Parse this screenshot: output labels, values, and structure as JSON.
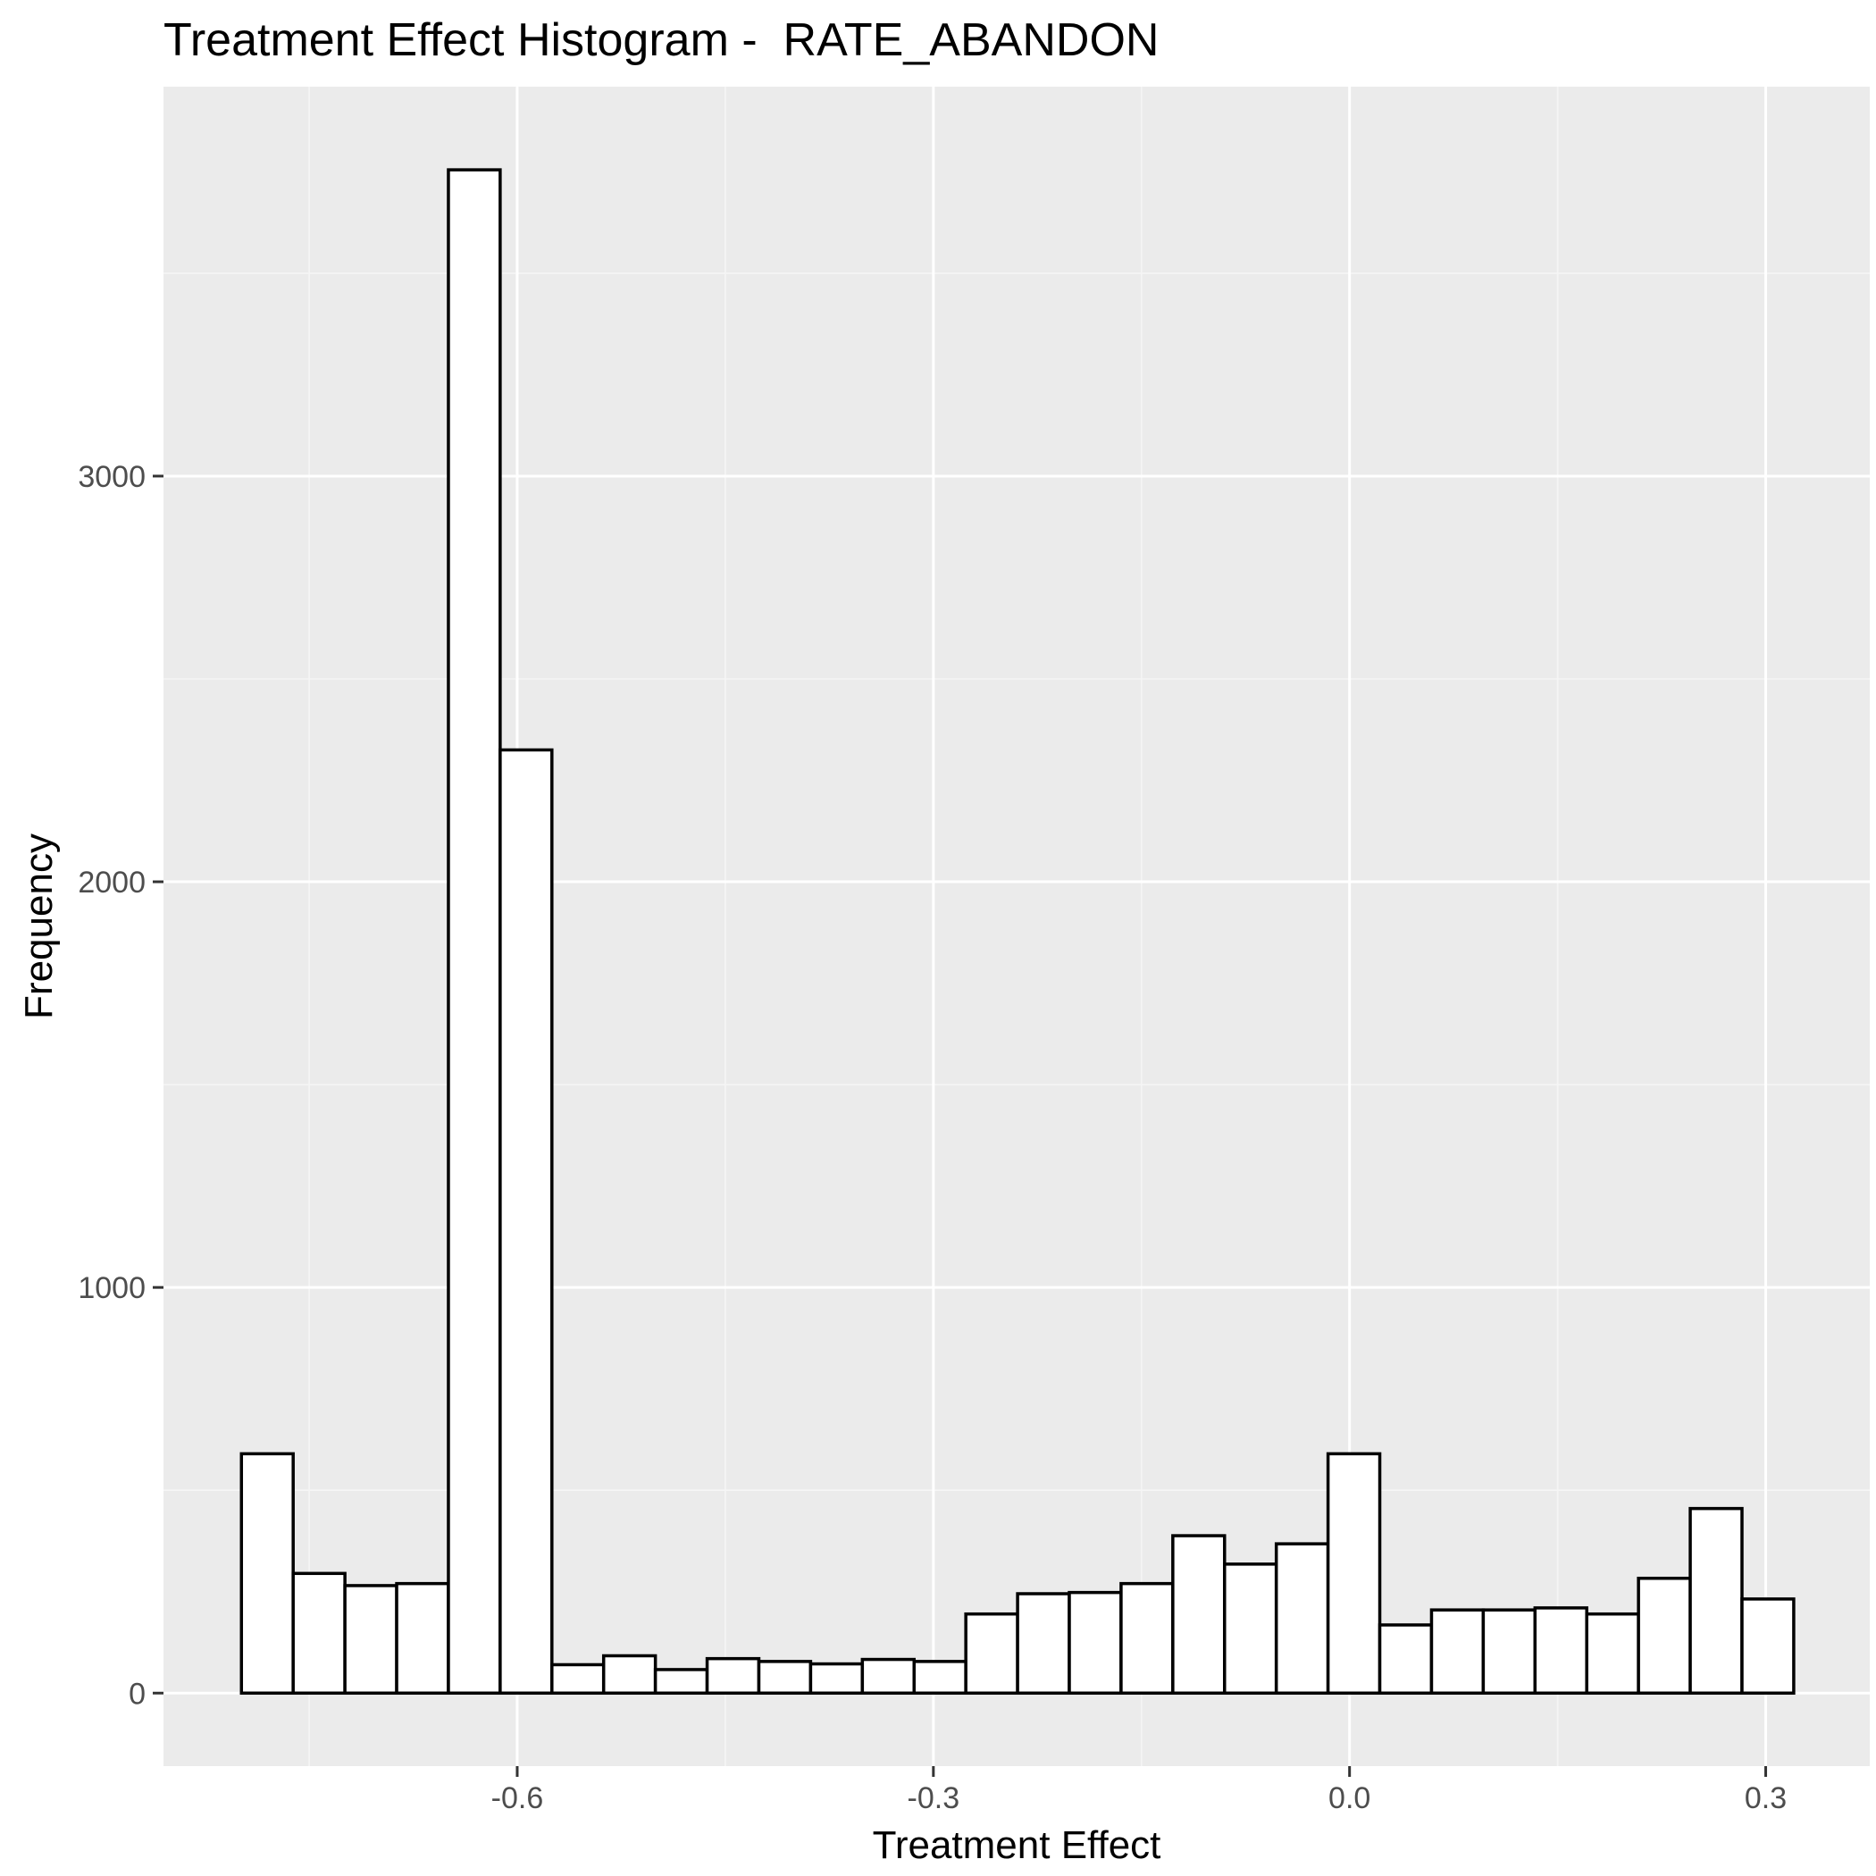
{
  "chart_data": {
    "type": "bar",
    "title": "Treatment Effect Histogram -  RATE_ABANDON",
    "xlabel": "Treatment Effect",
    "ylabel": "Frequency",
    "xlim": [
      -0.855,
      0.375
    ],
    "ylim": [
      -180,
      3960
    ],
    "x_ticks": [
      {
        "value": -0.6,
        "label": "-0.6"
      },
      {
        "value": -0.3,
        "label": "-0.3"
      },
      {
        "value": 0.0,
        "label": "0.0"
      },
      {
        "value": 0.3,
        "label": "0.3"
      }
    ],
    "y_ticks": [
      {
        "value": 0,
        "label": "0"
      },
      {
        "value": 1000,
        "label": "1000"
      },
      {
        "value": 2000,
        "label": "2000"
      },
      {
        "value": 3000,
        "label": "3000"
      }
    ],
    "grid": true,
    "bin_width": 0.0373,
    "bins": [
      {
        "x_start": -0.7988,
        "x_end": -0.7615,
        "count": 590
      },
      {
        "x_start": -0.7615,
        "x_end": -0.7242,
        "count": 295
      },
      {
        "x_start": -0.7242,
        "x_end": -0.6869,
        "count": 265
      },
      {
        "x_start": -0.6869,
        "x_end": -0.6496,
        "count": 270
      },
      {
        "x_start": -0.6496,
        "x_end": -0.6123,
        "count": 3755
      },
      {
        "x_start": -0.6123,
        "x_end": -0.575,
        "count": 2325
      },
      {
        "x_start": -0.575,
        "x_end": -0.5377,
        "count": 70
      },
      {
        "x_start": -0.5377,
        "x_end": -0.5004,
        "count": 92
      },
      {
        "x_start": -0.5004,
        "x_end": -0.4631,
        "count": 58
      },
      {
        "x_start": -0.4631,
        "x_end": -0.4258,
        "count": 85
      },
      {
        "x_start": -0.4258,
        "x_end": -0.3885,
        "count": 78
      },
      {
        "x_start": -0.3885,
        "x_end": -0.3512,
        "count": 72
      },
      {
        "x_start": -0.3512,
        "x_end": -0.3139,
        "count": 83
      },
      {
        "x_start": -0.3139,
        "x_end": -0.2766,
        "count": 78
      },
      {
        "x_start": -0.2766,
        "x_end": -0.2393,
        "count": 195
      },
      {
        "x_start": -0.2393,
        "x_end": -0.202,
        "count": 245
      },
      {
        "x_start": -0.202,
        "x_end": -0.1647,
        "count": 248
      },
      {
        "x_start": -0.1647,
        "x_end": -0.1274,
        "count": 270
      },
      {
        "x_start": -0.1274,
        "x_end": -0.0901,
        "count": 388
      },
      {
        "x_start": -0.0901,
        "x_end": -0.0528,
        "count": 318
      },
      {
        "x_start": -0.0528,
        "x_end": -0.0155,
        "count": 368
      },
      {
        "x_start": -0.0155,
        "x_end": 0.0218,
        "count": 590
      },
      {
        "x_start": 0.0218,
        "x_end": 0.0591,
        "count": 168
      },
      {
        "x_start": 0.0591,
        "x_end": 0.0964,
        "count": 205
      },
      {
        "x_start": 0.0964,
        "x_end": 0.1337,
        "count": 205
      },
      {
        "x_start": 0.1337,
        "x_end": 0.171,
        "count": 210
      },
      {
        "x_start": 0.171,
        "x_end": 0.2083,
        "count": 195
      },
      {
        "x_start": 0.2083,
        "x_end": 0.2456,
        "count": 283
      },
      {
        "x_start": 0.2456,
        "x_end": 0.2829,
        "count": 455
      },
      {
        "x_start": 0.2829,
        "x_end": 0.3202,
        "count": 232
      }
    ]
  },
  "colors": {
    "panel_background": "#ebebeb",
    "grid_major": "#ffffff",
    "grid_minor": "#f5f5f5",
    "bar_fill": "#ffffff",
    "bar_stroke": "#000000",
    "tick_mark": "#333333",
    "tick_label": "#4d4d4d"
  }
}
